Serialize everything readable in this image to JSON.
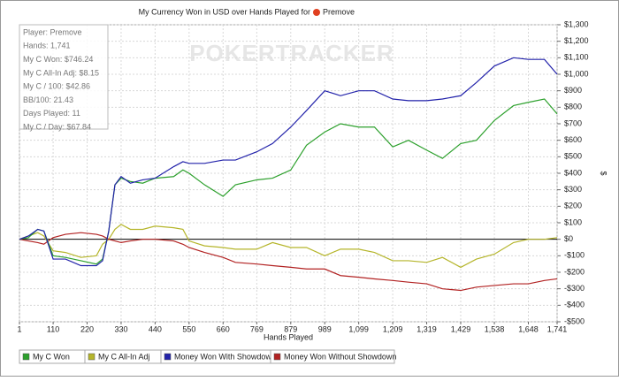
{
  "chart_data": {
    "type": "line",
    "title": "My Currency Won in USD over Hands Played for",
    "title_player": "Premove",
    "watermark": "POKERTRACKER",
    "x_label": "Hands Played",
    "y_label": "$",
    "annotations": [
      "Player: Premove",
      "Hands: 1,741",
      "My C Won: $746.24",
      "My C All-In Adj: $8.15",
      "My C / 100: $42.86",
      "BB/100: 21.43",
      "Days Played: 11",
      "My C / Day: $67.84"
    ],
    "x": [
      1,
      30,
      60,
      80,
      110,
      150,
      200,
      250,
      270,
      290,
      310,
      330,
      360,
      400,
      440,
      500,
      530,
      550,
      600,
      660,
      700,
      769,
      820,
      879,
      930,
      989,
      1040,
      1099,
      1150,
      1209,
      1260,
      1319,
      1370,
      1429,
      1480,
      1538,
      1600,
      1648,
      1700,
      1741
    ],
    "series": [
      {
        "name": "My C Won",
        "color": "#2ca02c",
        "values": [
          0,
          10,
          60,
          50,
          -100,
          -110,
          -130,
          -150,
          -120,
          50,
          330,
          370,
          350,
          340,
          370,
          380,
          420,
          400,
          330,
          260,
          330,
          360,
          370,
          420,
          570,
          650,
          700,
          680,
          680,
          560,
          600,
          540,
          490,
          580,
          600,
          720,
          810,
          830,
          850,
          760
        ]
      },
      {
        "name": "My C All-In Adj",
        "color": "#b5b52a",
        "values": [
          0,
          20,
          40,
          20,
          -70,
          -80,
          -110,
          -100,
          -30,
          0,
          60,
          90,
          60,
          60,
          80,
          70,
          60,
          -10,
          -40,
          -50,
          -60,
          -60,
          -20,
          -50,
          -50,
          -100,
          -60,
          -60,
          -80,
          -130,
          -130,
          -140,
          -110,
          -170,
          -120,
          -90,
          -20,
          0,
          0,
          10
        ]
      },
      {
        "name": "Money Won With Showdown",
        "color": "#2222aa",
        "values": [
          0,
          20,
          60,
          50,
          -120,
          -120,
          -160,
          -160,
          -130,
          50,
          330,
          380,
          340,
          360,
          370,
          440,
          470,
          460,
          460,
          480,
          480,
          530,
          580,
          680,
          780,
          900,
          870,
          900,
          900,
          850,
          840,
          840,
          850,
          870,
          950,
          1050,
          1100,
          1090,
          1090,
          1000
        ]
      },
      {
        "name": "Money Won Without Showdown",
        "color": "#b22222",
        "values": [
          0,
          -10,
          -20,
          -30,
          10,
          30,
          40,
          30,
          20,
          0,
          -10,
          -20,
          -10,
          0,
          0,
          -10,
          -30,
          -50,
          -80,
          -110,
          -140,
          -150,
          -160,
          -170,
          -180,
          -180,
          -220,
          -230,
          -240,
          -250,
          -260,
          -270,
          -300,
          -310,
          -290,
          -280,
          -270,
          -270,
          -250,
          -240
        ]
      }
    ],
    "xlim": [
      1,
      1741
    ],
    "xticks": [
      1,
      110,
      220,
      330,
      440,
      550,
      660,
      769,
      879,
      989,
      {
        "value": 1099,
        "label": "1,099"
      },
      {
        "value": 1209,
        "label": "1,209"
      },
      {
        "value": 1319,
        "label": "1,319"
      },
      {
        "value": 1429,
        "label": "1,429"
      },
      {
        "value": 1538,
        "label": "1,538"
      },
      {
        "value": 1648,
        "label": "1,648"
      },
      {
        "value": 1741,
        "label": "1,741"
      }
    ],
    "ylim": [
      -500,
      1300
    ],
    "yticks": [
      {
        "value": -500,
        "label": "-$500"
      },
      {
        "value": -400,
        "label": "-$400"
      },
      {
        "value": -300,
        "label": "-$300"
      },
      {
        "value": -200,
        "label": "-$200"
      },
      {
        "value": -100,
        "label": "-$100"
      },
      {
        "value": 0,
        "label": "$0"
      },
      {
        "value": 100,
        "label": "$100"
      },
      {
        "value": 200,
        "label": "$200"
      },
      {
        "value": 300,
        "label": "$300"
      },
      {
        "value": 400,
        "label": "$400"
      },
      {
        "value": 500,
        "label": "$500"
      },
      {
        "value": 600,
        "label": "$600"
      },
      {
        "value": 700,
        "label": "$700"
      },
      {
        "value": 800,
        "label": "$800"
      },
      {
        "value": 900,
        "label": "$900"
      },
      {
        "value": 1000,
        "label": "$1,000"
      },
      {
        "value": 1100,
        "label": "$1,100"
      },
      {
        "value": 1200,
        "label": "$1,200"
      },
      {
        "value": 1300,
        "label": "$1,300"
      }
    ],
    "grid": true
  }
}
